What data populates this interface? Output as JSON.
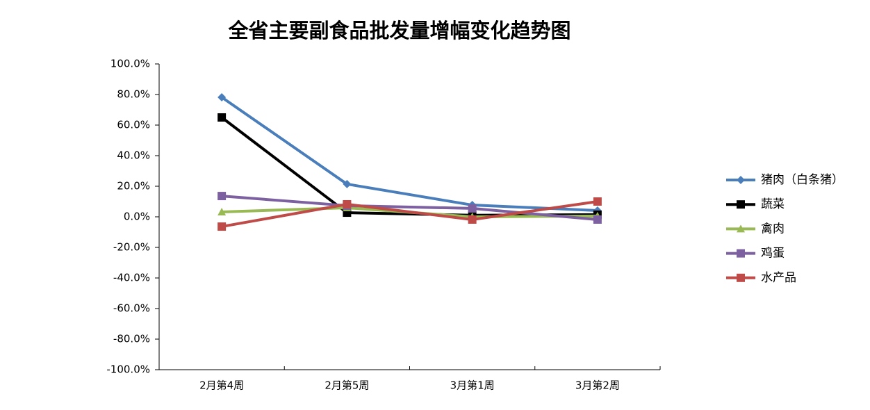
{
  "chart_data": {
    "type": "line",
    "title": "全省主要副食品批发量增幅变化趋势图",
    "categories": [
      "2月第4周",
      "2月第5周",
      "3月第1周",
      "3月第2周"
    ],
    "series": [
      {
        "name": "猪肉（白条猪）",
        "color": "#4a7ebb",
        "marker": "diamond",
        "values": [
          78.2,
          21.4,
          7.7,
          4.1
        ]
      },
      {
        "name": "蔬菜",
        "color": "#000000",
        "marker": "square",
        "values": [
          65,
          2.7,
          1,
          1.4
        ]
      },
      {
        "name": "禽肉",
        "color": "#98b954",
        "marker": "triangle",
        "values": [
          3.2,
          5.9,
          0,
          0.5
        ]
      },
      {
        "name": "鸡蛋",
        "color": "#7d60a0",
        "marker": "square",
        "values": [
          13.6,
          7.3,
          5.5,
          -1.8
        ]
      },
      {
        "name": "水产品",
        "color": "#be4b48",
        "marker": "square",
        "values": [
          -6.4,
          8.2,
          -1.8,
          10
        ]
      }
    ],
    "ylim": [
      -100,
      100
    ],
    "yticks": [
      {
        "value": -100,
        "label": "-100.0%"
      },
      {
        "value": -80,
        "label": "-80.0%"
      },
      {
        "value": -60,
        "label": "-60.0%"
      },
      {
        "value": -40,
        "label": "-40.0%"
      },
      {
        "value": -20,
        "label": "-20.0%"
      },
      {
        "value": 0,
        "label": "0.0%"
      },
      {
        "value": 20,
        "label": "20.0%"
      },
      {
        "value": 40,
        "label": "40.0%"
      },
      {
        "value": 60,
        "label": "60.0%"
      },
      {
        "value": 80,
        "label": "80.0%"
      },
      {
        "value": 100,
        "label": "100.0%"
      }
    ],
    "grid": false,
    "legend": "right"
  }
}
